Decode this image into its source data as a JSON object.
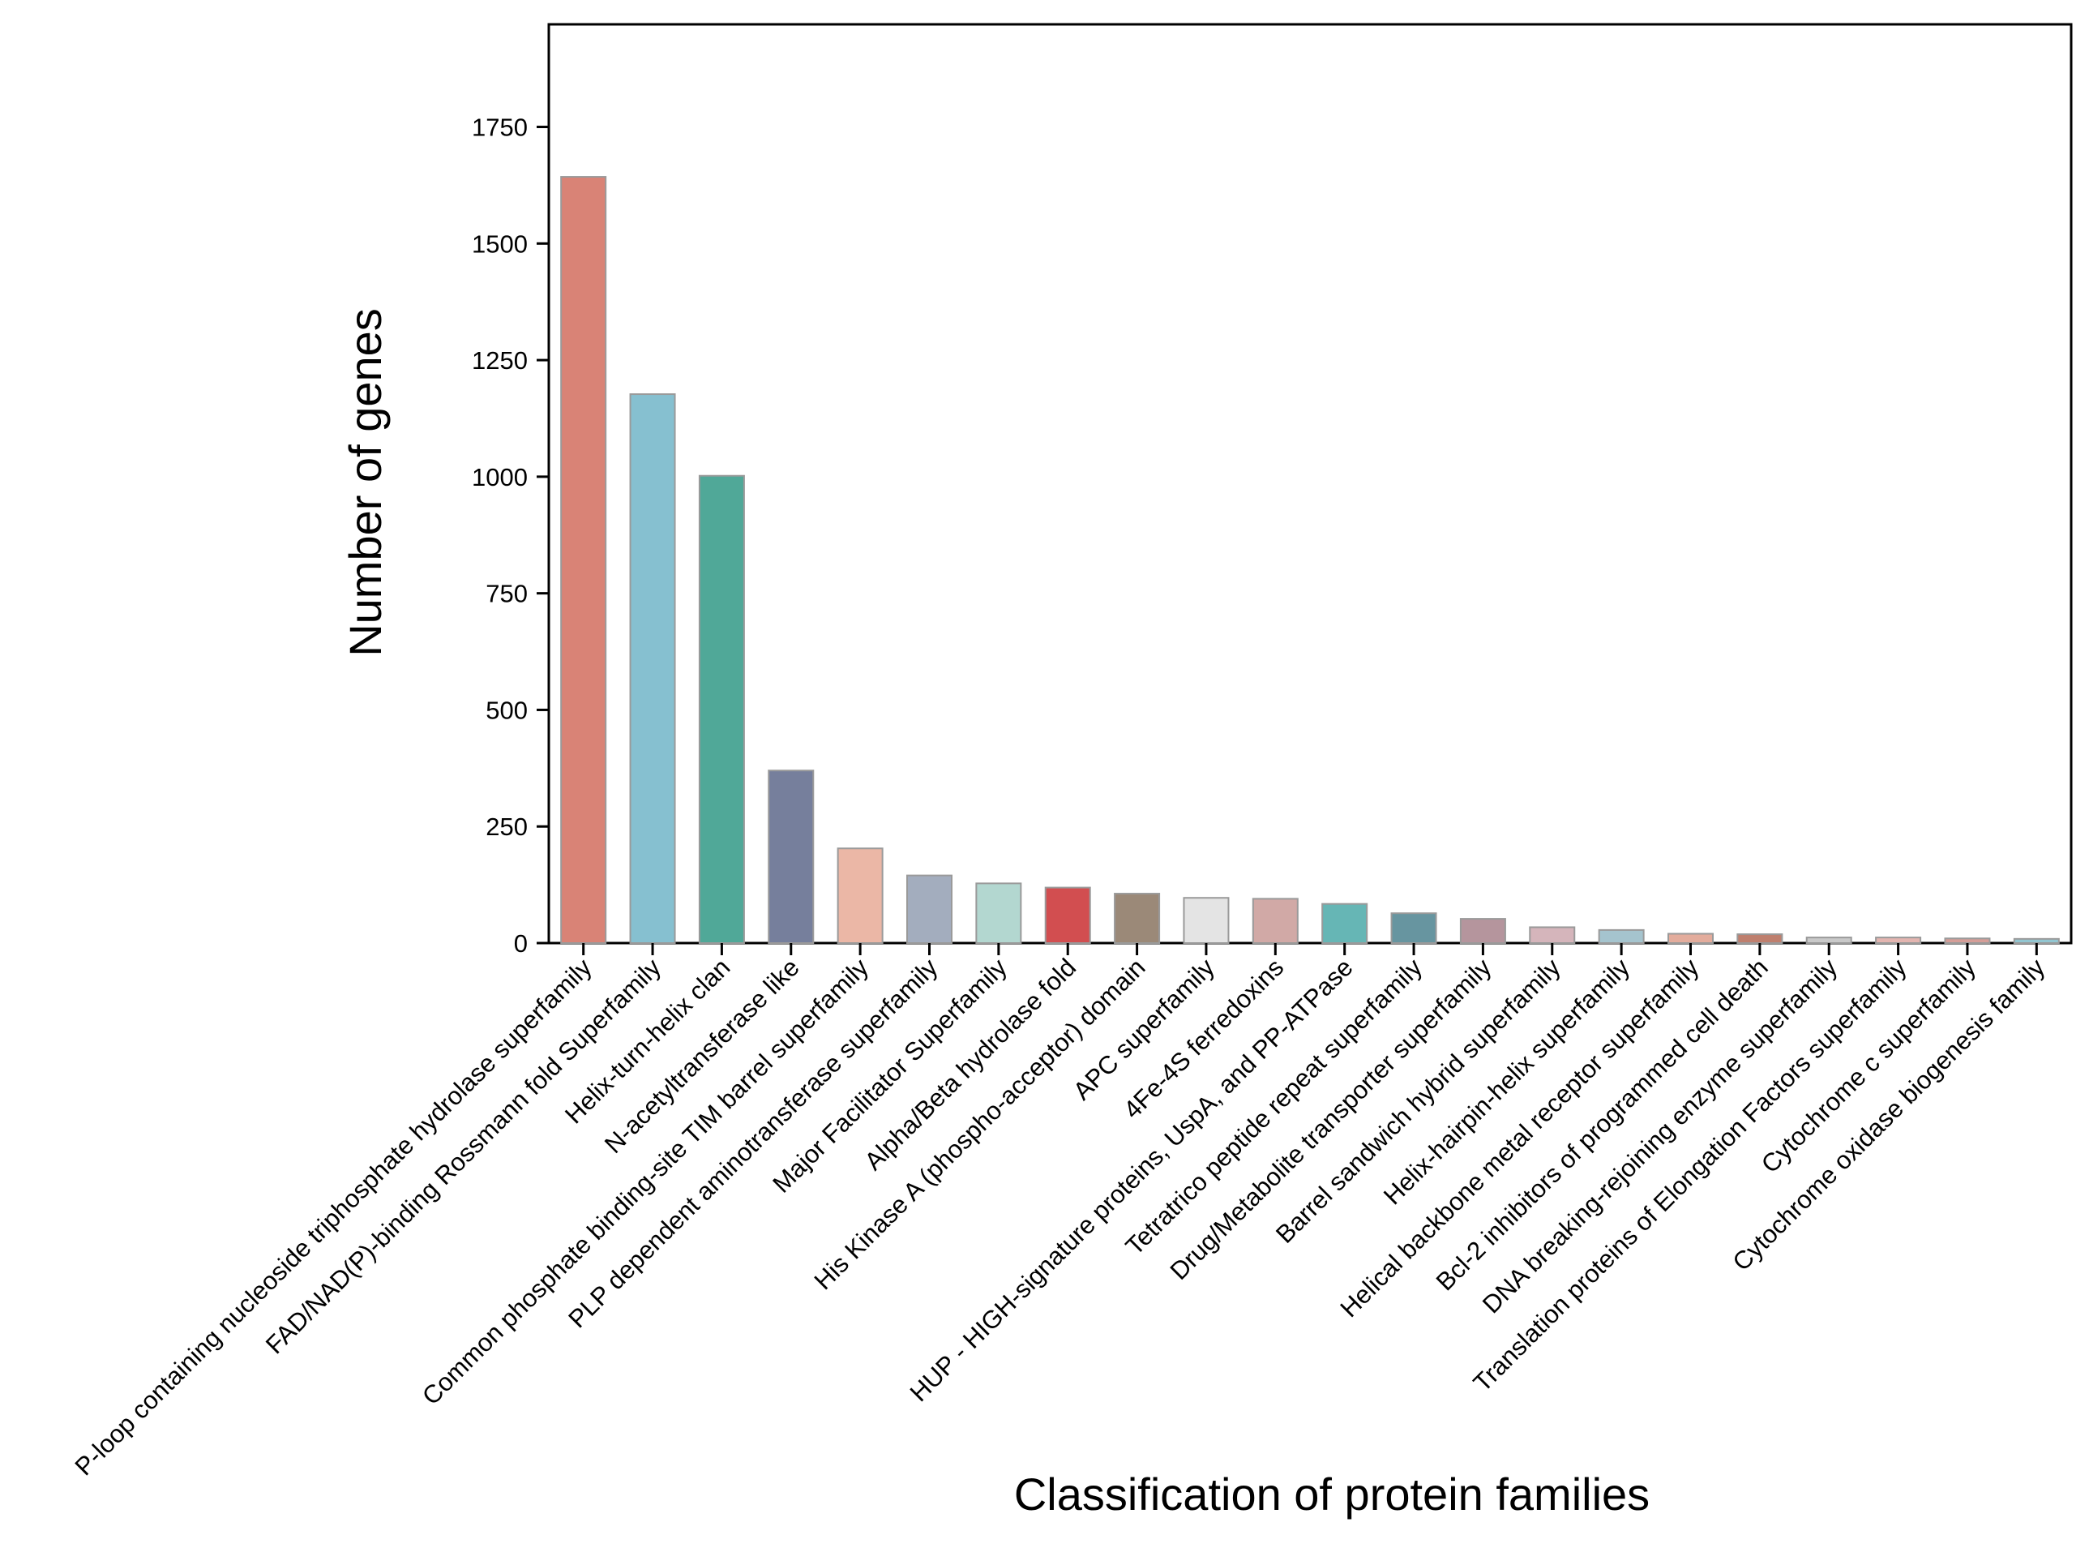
{
  "chart_data": {
    "type": "bar",
    "title": "",
    "xlabel": "Classification of protein families",
    "ylabel": "Number of genes",
    "ylim": [
      0,
      1970
    ],
    "yticks": [
      0,
      250,
      500,
      750,
      1000,
      1250,
      1500,
      1750
    ],
    "grid": false,
    "categories": [
      "P-loop containing nucleoside triphosphate hydrolase superfamily",
      "FAD/NAD(P)-binding Rossmann fold Superfamily",
      "Helix-turn-helix clan",
      "N-acetyltransferase like",
      "Common phosphate binding-site TIM barrel superfamily",
      "PLP dependent aminotransferase superfamily",
      "Major Facilitator Superfamily",
      "Alpha/Beta hydrolase fold",
      "His Kinase A (phospho-acceptor) domain",
      "APC superfamily",
      "4Fe-4S ferredoxins",
      "HUP - HIGH-signature proteins, UspA, and PP-ATPase",
      "Tetratrico peptide repeat superfamily",
      "Drug/Metabolite transporter superfamily",
      "Barrel sandwich hybrid superfamily",
      "Helix-hairpin-helix superfamily",
      "Helical backbone metal receptor superfamily",
      "Bcl-2 inhibitors of programmed cell death",
      "DNA breaking-rejoining enzyme superfamily",
      "Translation proteins of Elongation Factors superfamily",
      "Cytochrome c superfamily",
      "Cytochrome oxidase biogenesis family"
    ],
    "values": [
      1643,
      1177,
      1002,
      370,
      203,
      145,
      128,
      119,
      106,
      97,
      95,
      84,
      64,
      52,
      34,
      28,
      20,
      19,
      12,
      12,
      10,
      9
    ],
    "colors": [
      "#D98376",
      "#86C0D0",
      "#50A898",
      "#767F9C",
      "#EBB7A6",
      "#A3ADBE",
      "#B3D7D0",
      "#D24E50",
      "#9B8978",
      "#E4E4E4",
      "#D1A9A6",
      "#66B6B5",
      "#6795A0",
      "#B5959D",
      "#D5B5BB",
      "#A5C4CE",
      "#E3AC9C",
      "#BF7F6E",
      "#C9C9C9",
      "#E3B5B0",
      "#D59E98",
      "#92C6D1"
    ]
  }
}
